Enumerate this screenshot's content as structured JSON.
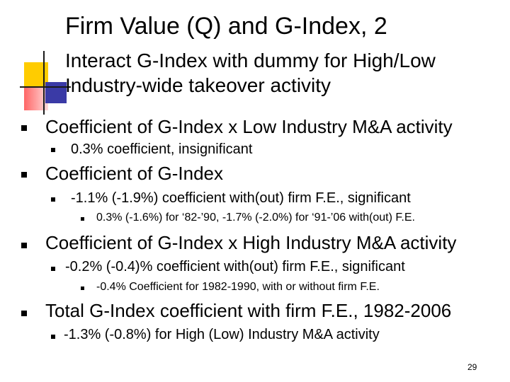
{
  "slide": {
    "title": "Firm Value (Q) and G-Index, 2",
    "subtitle_line1": "Interact G-Index with dummy for High/Low",
    "subtitle_line2": "Industry-wide takeover activity",
    "bullets": [
      {
        "text": "Coefficient of G-Index x Low Industry M&A activity"
      },
      {
        "text": "0.3% coefficient, insignificant"
      },
      {
        "text": "Coefficient of G-Index"
      },
      {
        "text": "-1.1% (-1.9%) coefficient with(out) firm F.E., significant"
      },
      {
        "text": "0.3% (-1.6%) for ‘82-’90, -1.7% (-2.0%) for ‘91-’06 with(out) F.E."
      },
      {
        "text": "Coefficient of G-Index x High Industry M&A activity"
      },
      {
        "text": "-0.2% (-0.4)% coefficient with(out) firm F.E., significant"
      },
      {
        "text": "-0.4% Coefficient for 1982-1990, with or without firm F.E."
      },
      {
        "text": "Total G-Index coefficient with firm F.E., 1982-2006"
      },
      {
        "text": "-1.3% (-0.8%) for High (Low) Industry M&A activity"
      }
    ],
    "page_number": "29"
  }
}
